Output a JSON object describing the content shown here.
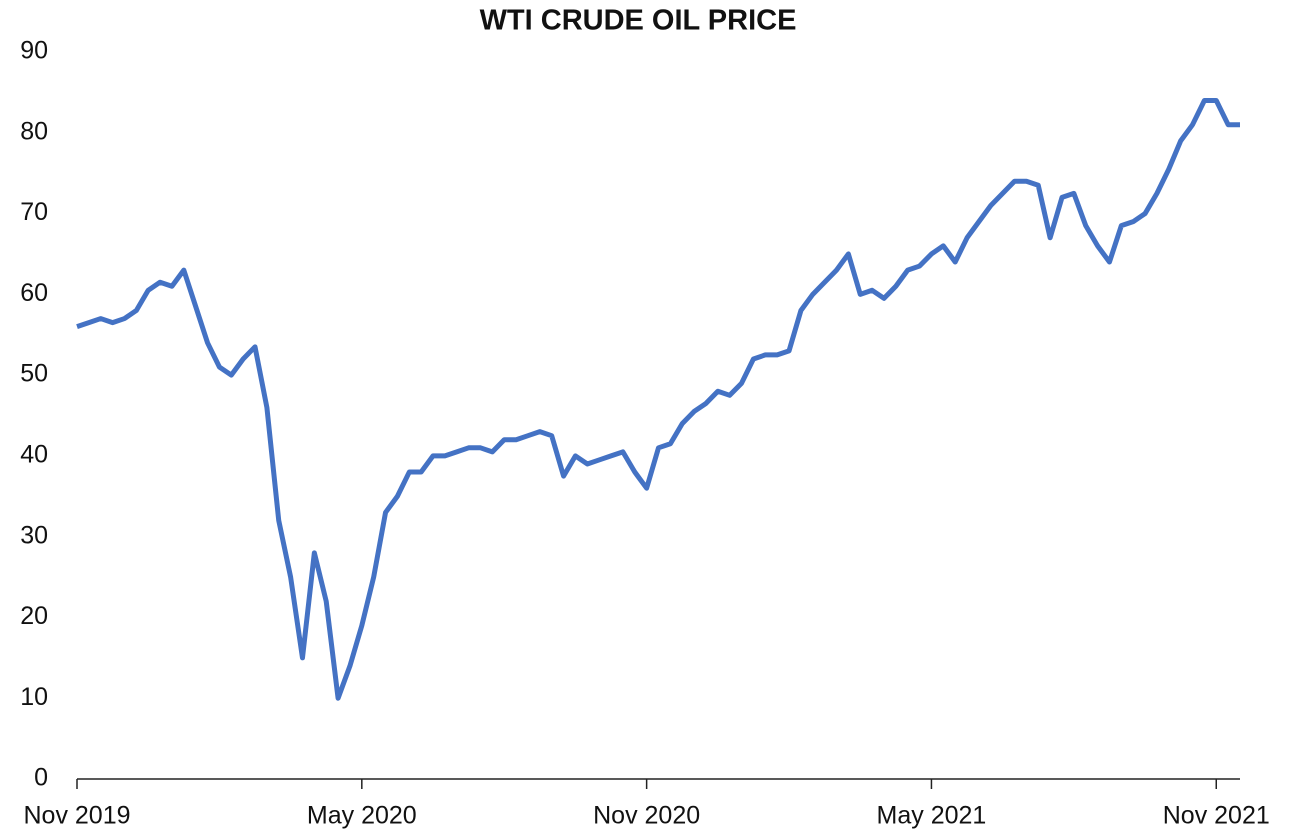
{
  "chart_data": {
    "type": "line",
    "title": "WTI CRUDE OIL PRICE",
    "categories": [
      "Nov 2019",
      null,
      null,
      null,
      null,
      null,
      null,
      null,
      null,
      null,
      null,
      null,
      null,
      null,
      null,
      null,
      null,
      null,
      null,
      null,
      null,
      null,
      null,
      null,
      "May 2020",
      null,
      null,
      null,
      null,
      null,
      null,
      null,
      null,
      null,
      null,
      null,
      null,
      null,
      null,
      null,
      null,
      null,
      null,
      null,
      null,
      null,
      null,
      null,
      "Nov 2020",
      null,
      null,
      null,
      null,
      null,
      null,
      null,
      null,
      null,
      null,
      null,
      null,
      null,
      null,
      null,
      null,
      null,
      null,
      null,
      null,
      null,
      null,
      null,
      "May 2021",
      null,
      null,
      null,
      null,
      null,
      null,
      null,
      null,
      null,
      null,
      null,
      null,
      null,
      null,
      null,
      null,
      null,
      null,
      null,
      null,
      null,
      null,
      null,
      "Nov 2021",
      null,
      null
    ],
    "series": [
      {
        "color": "#4472c4",
        "values": [
          56,
          56.5,
          57,
          56.5,
          57,
          58,
          60.5,
          61.5,
          61,
          63,
          58.5,
          54,
          51,
          50,
          52,
          53.5,
          46,
          32,
          25,
          15,
          28,
          22,
          10,
          14,
          19,
          25,
          33,
          35,
          38,
          38,
          40,
          40,
          40.5,
          41,
          41,
          40.5,
          42,
          42,
          42.5,
          43,
          42.5,
          37.5,
          40,
          39,
          39.5,
          40,
          40.5,
          38,
          36,
          41,
          41.5,
          44,
          45.5,
          46.5,
          48,
          47.5,
          49,
          52,
          52.5,
          52.5,
          53,
          58,
          60,
          61.5,
          63,
          65,
          60,
          60.5,
          59.5,
          61,
          63,
          63.5,
          65,
          66,
          64,
          67,
          69,
          71,
          72.5,
          74,
          74,
          73.5,
          67,
          72,
          72.5,
          68.5,
          66,
          64,
          68.5,
          69,
          70,
          72.5,
          75.5,
          79,
          81,
          84,
          84,
          81,
          81
        ]
      }
    ],
    "ylim": [
      0,
      90
    ],
    "yticks": [
      0,
      10,
      20,
      30,
      40,
      50,
      60,
      70,
      80,
      90
    ],
    "grid": false
  }
}
